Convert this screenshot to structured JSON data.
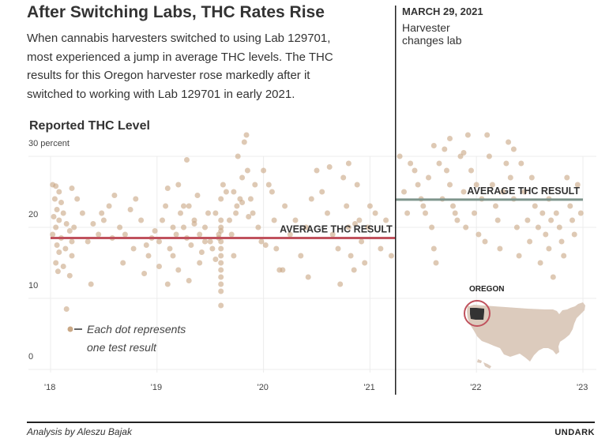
{
  "title": "After Switching Labs, THC Rates Rise",
  "subtitle": "When cannabis harvesters switched to using Lab 129701, most experienced a jump in average THC levels. The THC results for this Oregon harvester rose markedly after it switched to working with Lab 129701 in early 2021.",
  "annotation": {
    "date": "MARCH 29, 2021",
    "text": "Harvester changes lab"
  },
  "footer": {
    "credit": "Analysis by Aleszu Bajak",
    "brand": "UNDARK"
  },
  "chart_data": {
    "type": "scatter",
    "ylabel": "Reported THC Level",
    "y_ticks": [
      {
        "value": 0,
        "label": "0"
      },
      {
        "value": 10,
        "label": "10"
      },
      {
        "value": 20,
        "label": "20"
      },
      {
        "value": 30,
        "label": "30 percent"
      }
    ],
    "x_ticks": [
      {
        "value": 2018,
        "label": "'18"
      },
      {
        "value": 2019,
        "label": "'19"
      },
      {
        "value": 2020,
        "label": "'20"
      },
      {
        "value": 2021,
        "label": "'21"
      },
      {
        "value": 2022,
        "label": "'22"
      },
      {
        "value": 2023,
        "label": "'23"
      }
    ],
    "xlim": [
      2018,
      2023
    ],
    "ylim": [
      0,
      30
    ],
    "grid": true,
    "lab_change": 2021.24,
    "averages": [
      {
        "label": "AVERAGE THC RESULT",
        "x_start": 2018.0,
        "x_end": 2021.24,
        "value": 18.5,
        "color": "#c0525d"
      },
      {
        "label": "AVERAGE THC RESULT",
        "x_start": 2021.24,
        "x_end": 2023.0,
        "value": 23.9,
        "color": "#7e958c"
      }
    ],
    "legend": {
      "text_line1": "Each dot represents",
      "text_line2": "one test result",
      "position": "bottom-left"
    },
    "inset_map": {
      "label": "OREGON"
    },
    "dot_color": "#c9a886",
    "points": [
      [
        2018.02,
        26
      ],
      [
        2018.05,
        25.8
      ],
      [
        2018.08,
        25
      ],
      [
        2018.04,
        24
      ],
      [
        2018.1,
        23.5
      ],
      [
        2018.06,
        22.5
      ],
      [
        2018.12,
        22
      ],
      [
        2018.03,
        21.5
      ],
      [
        2018.08,
        21
      ],
      [
        2018.15,
        20.5
      ],
      [
        2018.05,
        20
      ],
      [
        2018.18,
        19.5
      ],
      [
        2018.02,
        19
      ],
      [
        2018.1,
        18.5
      ],
      [
        2018.2,
        18
      ],
      [
        2018.06,
        17.5
      ],
      [
        2018.14,
        17
      ],
      [
        2018.08,
        16.5
      ],
      [
        2018.2,
        16
      ],
      [
        2018.05,
        15
      ],
      [
        2018.12,
        14.5
      ],
      [
        2018.07,
        13.8
      ],
      [
        2018.18,
        13.2
      ],
      [
        2018.15,
        8.5
      ],
      [
        2018.2,
        25.5
      ],
      [
        2018.25,
        24
      ],
      [
        2018.3,
        22
      ],
      [
        2018.22,
        20
      ],
      [
        2018.35,
        18
      ],
      [
        2018.4,
        20.5
      ],
      [
        2018.45,
        19
      ],
      [
        2018.5,
        21
      ],
      [
        2018.55,
        23
      ],
      [
        2018.6,
        24.5
      ],
      [
        2018.65,
        20
      ],
      [
        2018.7,
        19
      ],
      [
        2018.75,
        22.5
      ],
      [
        2018.8,
        24
      ],
      [
        2018.85,
        21
      ],
      [
        2018.9,
        17.5
      ],
      [
        2018.95,
        18.5
      ],
      [
        2018.38,
        12
      ],
      [
        2018.48,
        22
      ],
      [
        2018.58,
        18.5
      ],
      [
        2018.68,
        15
      ],
      [
        2018.78,
        17
      ],
      [
        2018.88,
        13.5
      ],
      [
        2018.92,
        16
      ],
      [
        2018.98,
        19.5
      ],
      [
        2019.02,
        18
      ],
      [
        2019.05,
        21
      ],
      [
        2019.08,
        23
      ],
      [
        2019.1,
        25.5
      ],
      [
        2019.12,
        17
      ],
      [
        2019.15,
        16
      ],
      [
        2019.18,
        19
      ],
      [
        2019.2,
        26
      ],
      [
        2019.22,
        22
      ],
      [
        2019.25,
        20
      ],
      [
        2019.28,
        18.5
      ],
      [
        2019.3,
        23
      ],
      [
        2019.32,
        17.5
      ],
      [
        2019.35,
        21
      ],
      [
        2019.38,
        24.5
      ],
      [
        2019.4,
        19
      ],
      [
        2019.42,
        16.5
      ],
      [
        2019.45,
        20
      ],
      [
        2019.48,
        22
      ],
      [
        2019.5,
        18
      ],
      [
        2019.52,
        17
      ],
      [
        2019.55,
        15.5
      ],
      [
        2019.58,
        19
      ],
      [
        2019.02,
        14.5
      ],
      [
        2019.1,
        12
      ],
      [
        2019.2,
        14
      ],
      [
        2019.3,
        12.5
      ],
      [
        2019.4,
        15
      ],
      [
        2019.28,
        29.5
      ],
      [
        2019.15,
        20
      ],
      [
        2019.25,
        23
      ],
      [
        2019.35,
        20.5
      ],
      [
        2019.45,
        18
      ],
      [
        2019.55,
        22
      ],
      [
        2019.58,
        18.5
      ],
      [
        2019.6,
        21
      ],
      [
        2019.6,
        19.5
      ],
      [
        2019.6,
        18
      ],
      [
        2019.6,
        17
      ],
      [
        2019.6,
        16
      ],
      [
        2019.6,
        15
      ],
      [
        2019.6,
        14
      ],
      [
        2019.6,
        13
      ],
      [
        2019.6,
        12
      ],
      [
        2019.6,
        11
      ],
      [
        2019.6,
        9
      ],
      [
        2019.6,
        20
      ],
      [
        2019.6,
        24
      ],
      [
        2019.62,
        26
      ],
      [
        2019.65,
        25
      ],
      [
        2019.68,
        21
      ],
      [
        2019.7,
        19
      ],
      [
        2019.72,
        16
      ],
      [
        2019.75,
        23
      ],
      [
        2019.78,
        24
      ],
      [
        2019.8,
        27
      ],
      [
        2019.82,
        32
      ],
      [
        2019.84,
        33
      ],
      [
        2019.85,
        28
      ],
      [
        2019.88,
        24
      ],
      [
        2019.9,
        22
      ],
      [
        2019.92,
        26
      ],
      [
        2019.95,
        20
      ],
      [
        2019.98,
        18
      ],
      [
        2019.76,
        30
      ],
      [
        2019.8,
        23.5
      ],
      [
        2019.86,
        21.5
      ],
      [
        2019.72,
        25
      ],
      [
        2019.74,
        22
      ],
      [
        2020.0,
        28
      ],
      [
        2020.05,
        26
      ],
      [
        2020.08,
        25
      ],
      [
        2020.1,
        21
      ],
      [
        2020.12,
        17
      ],
      [
        2020.15,
        14
      ],
      [
        2020.2,
        23
      ],
      [
        2020.25,
        19
      ],
      [
        2020.3,
        21
      ],
      [
        2020.35,
        16
      ],
      [
        2020.4,
        20
      ],
      [
        2020.45,
        24
      ],
      [
        2020.5,
        28
      ],
      [
        2020.55,
        25
      ],
      [
        2020.6,
        22
      ],
      [
        2020.65,
        19
      ],
      [
        2020.7,
        17
      ],
      [
        2020.72,
        12
      ],
      [
        2020.75,
        27
      ],
      [
        2020.78,
        23
      ],
      [
        2020.8,
        20
      ],
      [
        2020.82,
        16
      ],
      [
        2020.85,
        14
      ],
      [
        2020.88,
        26
      ],
      [
        2020.9,
        21
      ],
      [
        2020.92,
        18
      ],
      [
        2020.95,
        15
      ],
      [
        2020.98,
        20
      ],
      [
        2021.0,
        23
      ],
      [
        2021.05,
        22
      ],
      [
        2021.1,
        17
      ],
      [
        2021.15,
        21
      ],
      [
        2021.2,
        16
      ],
      [
        2020.62,
        28.5
      ],
      [
        2020.8,
        29
      ],
      [
        2020.86,
        20.5
      ],
      [
        2020.02,
        17.5
      ],
      [
        2020.18,
        14
      ],
      [
        2020.42,
        13
      ],
      [
        2021.28,
        30
      ],
      [
        2021.32,
        25
      ],
      [
        2021.35,
        22
      ],
      [
        2021.38,
        29
      ],
      [
        2021.42,
        28
      ],
      [
        2021.45,
        26
      ],
      [
        2021.48,
        24
      ],
      [
        2021.5,
        23
      ],
      [
        2021.52,
        22
      ],
      [
        2021.55,
        27
      ],
      [
        2021.58,
        20
      ],
      [
        2021.6,
        17
      ],
      [
        2021.62,
        15
      ],
      [
        2021.65,
        29
      ],
      [
        2021.68,
        24
      ],
      [
        2021.7,
        31
      ],
      [
        2021.72,
        28
      ],
      [
        2021.75,
        26
      ],
      [
        2021.78,
        23
      ],
      [
        2021.8,
        22
      ],
      [
        2021.82,
        21
      ],
      [
        2021.85,
        30
      ],
      [
        2021.88,
        25
      ],
      [
        2021.9,
        20
      ],
      [
        2021.92,
        33
      ],
      [
        2021.95,
        28
      ],
      [
        2021.98,
        22
      ],
      [
        2022.0,
        26
      ],
      [
        2022.02,
        19
      ],
      [
        2022.05,
        24
      ],
      [
        2022.08,
        18
      ],
      [
        2022.1,
        33
      ],
      [
        2022.12,
        30
      ],
      [
        2022.15,
        26
      ],
      [
        2022.18,
        23
      ],
      [
        2022.2,
        21
      ],
      [
        2022.22,
        17
      ],
      [
        2022.25,
        25
      ],
      [
        2022.28,
        29
      ],
      [
        2022.3,
        32
      ],
      [
        2022.32,
        27
      ],
      [
        2022.35,
        24
      ],
      [
        2022.38,
        20
      ],
      [
        2022.4,
        16
      ],
      [
        2022.42,
        29
      ],
      [
        2022.45,
        25
      ],
      [
        2022.48,
        21
      ],
      [
        2022.5,
        18
      ],
      [
        2022.52,
        27
      ],
      [
        2022.55,
        23
      ],
      [
        2022.58,
        20
      ],
      [
        2022.6,
        15
      ],
      [
        2022.62,
        22
      ],
      [
        2022.65,
        19
      ],
      [
        2022.68,
        24
      ],
      [
        2022.7,
        21
      ],
      [
        2022.72,
        13
      ],
      [
        2022.75,
        22
      ],
      [
        2022.78,
        20
      ],
      [
        2022.8,
        18
      ],
      [
        2022.82,
        16
      ],
      [
        2022.85,
        27
      ],
      [
        2022.88,
        23
      ],
      [
        2022.9,
        21
      ],
      [
        2022.92,
        19
      ],
      [
        2022.95,
        26
      ],
      [
        2022.98,
        22
      ],
      [
        2021.6,
        31.5
      ],
      [
        2021.75,
        32.5
      ],
      [
        2021.88,
        30.5
      ],
      [
        2022.35,
        31
      ],
      [
        2022.68,
        17
      ]
    ]
  }
}
